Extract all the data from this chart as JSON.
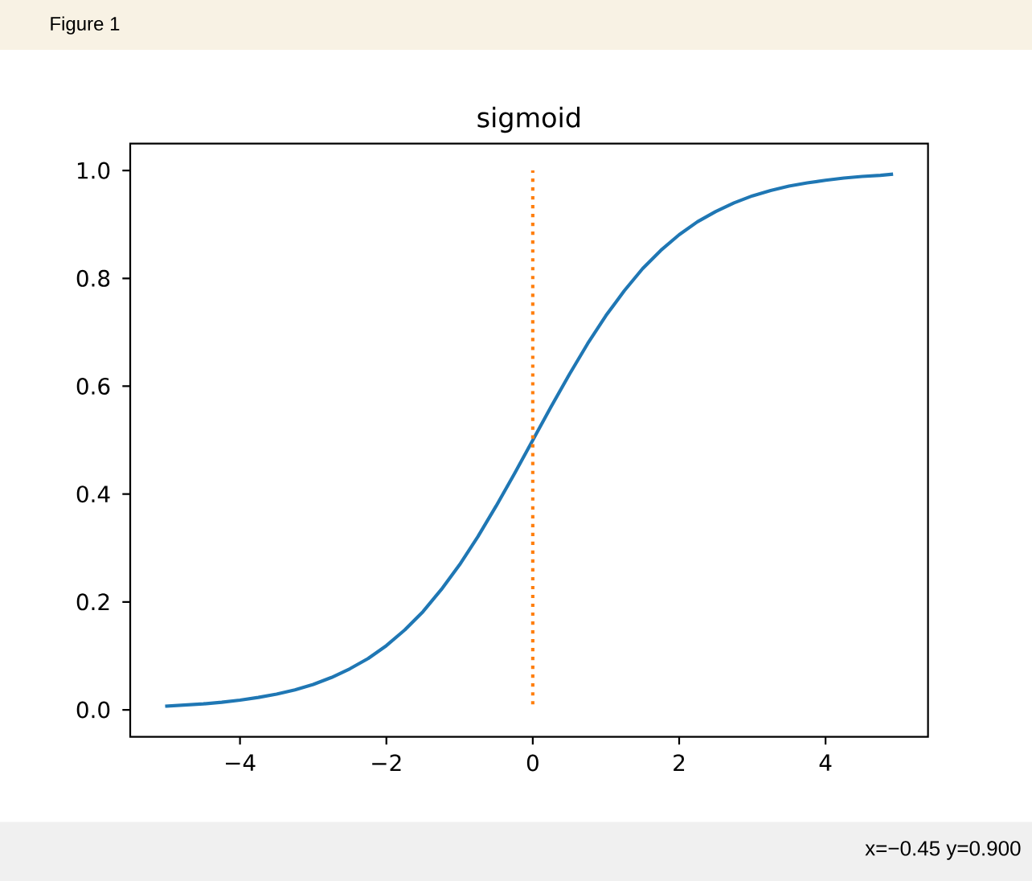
{
  "chart_data": {
    "type": "line",
    "title": "sigmoid",
    "series": [
      {
        "color": "#1f77b4",
        "line_style": "solid",
        "x": [
          -5,
          -4.75,
          -4.5,
          -4.25,
          -4,
          -3.75,
          -3.5,
          -3.25,
          -3,
          -2.75,
          -2.5,
          -2.25,
          -2,
          -1.75,
          -1.5,
          -1.25,
          -1,
          -0.75,
          -0.5,
          -0.25,
          0,
          0.25,
          0.5,
          0.75,
          1,
          1.25,
          1.5,
          1.75,
          2,
          2.25,
          2.5,
          2.75,
          3,
          3.25,
          3.5,
          3.75,
          4,
          4.25,
          4.5,
          4.75,
          4.9
        ],
        "values": [
          0.007,
          0.009,
          0.011,
          0.014,
          0.018,
          0.023,
          0.029,
          0.037,
          0.047,
          0.06,
          0.076,
          0.095,
          0.119,
          0.148,
          0.182,
          0.223,
          0.269,
          0.321,
          0.378,
          0.438,
          0.5,
          0.562,
          0.622,
          0.679,
          0.731,
          0.777,
          0.818,
          0.852,
          0.881,
          0.905,
          0.924,
          0.94,
          0.953,
          0.963,
          0.971,
          0.977,
          0.982,
          0.986,
          0.989,
          0.991,
          0.993
        ]
      },
      {
        "color": "#ff7f0e",
        "line_style": "dotted",
        "x": [
          0,
          0
        ],
        "values": [
          0.01,
          1.0
        ]
      }
    ],
    "xlim": [
      -5.5,
      5.4
    ],
    "ylim": [
      -0.05,
      1.05
    ],
    "xticks": [
      {
        "value": -4,
        "label": "−4"
      },
      {
        "value": -2,
        "label": "−2"
      },
      0,
      2,
      4
    ],
    "yticks": [
      {
        "value": 0,
        "label": "0.0"
      },
      0.2,
      0.4,
      0.6,
      0.8,
      {
        "value": 1,
        "label": "1.0"
      }
    ],
    "marker": "none",
    "annotations": [
      "Figure 1",
      "x=−0.45 y=0.900"
    ]
  }
}
